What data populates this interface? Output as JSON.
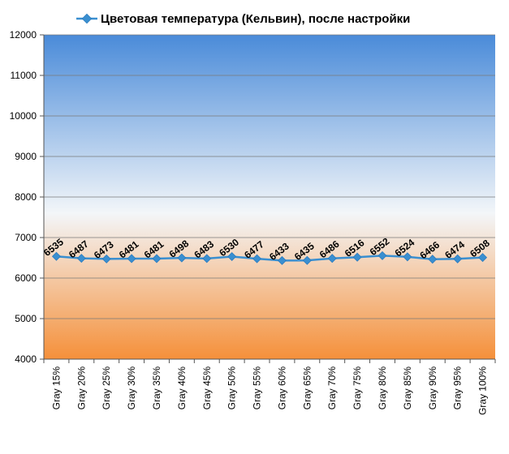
{
  "chart_data": {
    "type": "line",
    "title": "",
    "xlabel": "",
    "ylabel": "",
    "categories": [
      "Gray 15%",
      "Gray 20%",
      "Gray 25%",
      "Gray 30%",
      "Gray 35%",
      "Gray 40%",
      "Gray 45%",
      "Gray 50%",
      "Gray 55%",
      "Gray 60%",
      "Gray 65%",
      "Gray 70%",
      "Gray 75%",
      "Gray 80%",
      "Gray 85%",
      "Gray 90%",
      "Gray 95%",
      "Gray 100%"
    ],
    "series": [
      {
        "name": "Цветовая температура (Кельвин), после настройки",
        "values": [
          6535,
          6487,
          6473,
          6481,
          6481,
          6498,
          6483,
          6530,
          6477,
          6433,
          6435,
          6486,
          6516,
          6552,
          6524,
          6466,
          6474,
          6508
        ],
        "color": "#3a8fd0"
      }
    ],
    "ylim": [
      4000,
      12000
    ],
    "yticks": [
      4000,
      5000,
      6000,
      7000,
      8000,
      9000,
      10000,
      11000,
      12000
    ],
    "grid": true,
    "legend_position": "top",
    "data_labels": true,
    "background_gradient": [
      "#4a8bd9",
      "#f3f6f9",
      "#f5903a"
    ]
  }
}
